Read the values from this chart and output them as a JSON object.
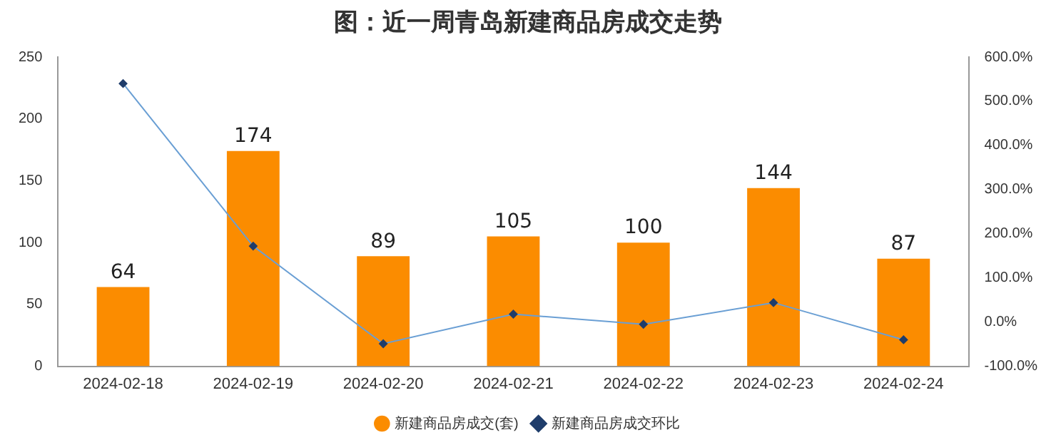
{
  "chart_data": {
    "type": "bar",
    "title": "图：近一周青岛新建商品房成交走势",
    "categories": [
      "2024-02-18",
      "2024-02-19",
      "2024-02-20",
      "2024-02-21",
      "2024-02-22",
      "2024-02-23",
      "2024-02-24"
    ],
    "series": [
      {
        "name": "新建商品房成交(套)",
        "color": "#fb8c00",
        "values": [
          64,
          174,
          89,
          105,
          100,
          144,
          87
        ],
        "value_labels": [
          "64",
          "174",
          "89",
          "105",
          "100",
          "144",
          "87"
        ]
      },
      {
        "name": "新建商品房成交环比",
        "type": "line",
        "axis": "y2",
        "color": "#6a9fd4",
        "marker": "diamond",
        "values": [
          540,
          172,
          -49,
          18,
          -5,
          44,
          -40
        ]
      }
    ],
    "ylim": [
      0,
      250
    ],
    "yticks": [
      0,
      50,
      100,
      150,
      200,
      250
    ],
    "y2lim": [
      -100,
      600
    ],
    "y2ticks": [
      {
        "value": -100,
        "label": "-100.0%"
      },
      {
        "value": 0,
        "label": "0.0%"
      },
      {
        "value": 100,
        "label": "100.0%"
      },
      {
        "value": 200,
        "label": "200.0%"
      },
      {
        "value": 300,
        "label": "300.0%"
      },
      {
        "value": 400,
        "label": "400.0%"
      },
      {
        "value": 500,
        "label": "500.0%"
      },
      {
        "value": 600,
        "label": "600.0%"
      }
    ],
    "grid": false,
    "legend": "bottom"
  }
}
